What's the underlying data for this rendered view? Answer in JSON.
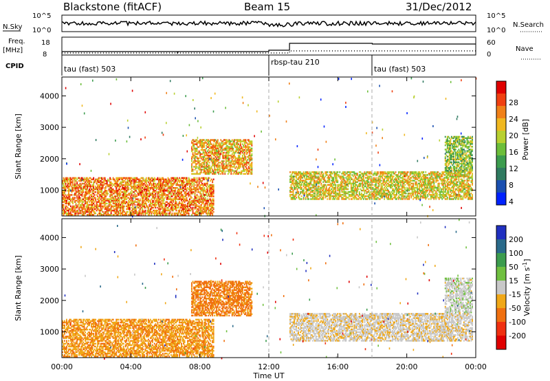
{
  "header": {
    "station": "Blackstone (fitACF)",
    "beam": "Beam 15",
    "date": "31/Dec/2012"
  },
  "status_panel": {
    "left_labels": {
      "nsky": "N.Sky",
      "freq": "Freq.",
      "freq_unit": "[MHz]",
      "cpid": "CPID"
    },
    "right_labels": {
      "nsearch": "N.Search",
      "nave": "Nave"
    },
    "left_ticks_top": [
      "10^5",
      "10^0"
    ],
    "right_ticks_top": [
      "10^5",
      "10^0"
    ],
    "left_ticks_freq": [
      "18",
      "8"
    ],
    "right_ticks_nave": [
      "60",
      "0"
    ],
    "cpid_segments": [
      {
        "label": "tau (fast) 503",
        "start": 0
      },
      {
        "label": "rbsp-tau 210",
        "start": 12
      },
      {
        "label": "tau (fast) 503",
        "start": 18
      }
    ]
  },
  "power_panel": {
    "ylabel": "Slant Range [km]",
    "yticks": [
      "4000",
      "3000",
      "2000",
      "1000"
    ],
    "colorbar_label": "Power [dB]",
    "colorbar_ticks": [
      "28",
      "24",
      "20",
      "16",
      "12",
      "8",
      "4"
    ],
    "colors": [
      "#0022ff",
      "#1a4fb0",
      "#2f7a60",
      "#3c9c4e",
      "#6cbe3a",
      "#b8d030",
      "#f0b820",
      "#f08018",
      "#f04010",
      "#e00000"
    ]
  },
  "velocity_panel": {
    "ylabel": "Slant Range [km]",
    "yticks": [
      "4000",
      "3000",
      "2000",
      "1000"
    ],
    "colorbar_label": "Velocity [m s^-1]",
    "colorbar_ticks": [
      "200",
      "100",
      "50",
      "15",
      "-15",
      "-50",
      "-100",
      "-200"
    ],
    "colors": [
      "#2030c0",
      "#2a6a8a",
      "#3c9c4e",
      "#70c040",
      "#c8c8c8",
      "#f0a818",
      "#f07010",
      "#f03010",
      "#e00000"
    ]
  },
  "xaxis": {
    "ticks": [
      "00:00",
      "04:00",
      "08:00",
      "12:00",
      "16:00",
      "20:00",
      "00:00"
    ],
    "label": "Time UT"
  },
  "chart_data": {
    "type": "heatmap",
    "title": "Blackstone (fitACF) Beam 15 31/Dec/2012",
    "xlabel": "Time UT",
    "ylabel": "Slant Range [km]",
    "xlim_hours": [
      0,
      24
    ],
    "ylim_km": [
      180,
      4600
    ],
    "series": [
      {
        "name": "Power [dB]",
        "clim": [
          0,
          30
        ]
      },
      {
        "name": "Velocity [m s^-1]",
        "clim": [
          -200,
          200
        ]
      }
    ],
    "echo_regions": [
      {
        "t0": 0.0,
        "t1": 8.8,
        "r0": 200,
        "r1": 1400,
        "power": 22,
        "velocity": -60
      },
      {
        "t0": 7.5,
        "t1": 11.0,
        "r0": 1500,
        "r1": 2600,
        "power": 20,
        "velocity": -80
      },
      {
        "t0": 13.2,
        "t1": 23.8,
        "r0": 700,
        "r1": 1600,
        "power": 18,
        "velocity": -10
      },
      {
        "t0": 22.2,
        "t1": 23.8,
        "r0": 1600,
        "r1": 2700,
        "power": 14,
        "velocity": 5
      }
    ]
  }
}
